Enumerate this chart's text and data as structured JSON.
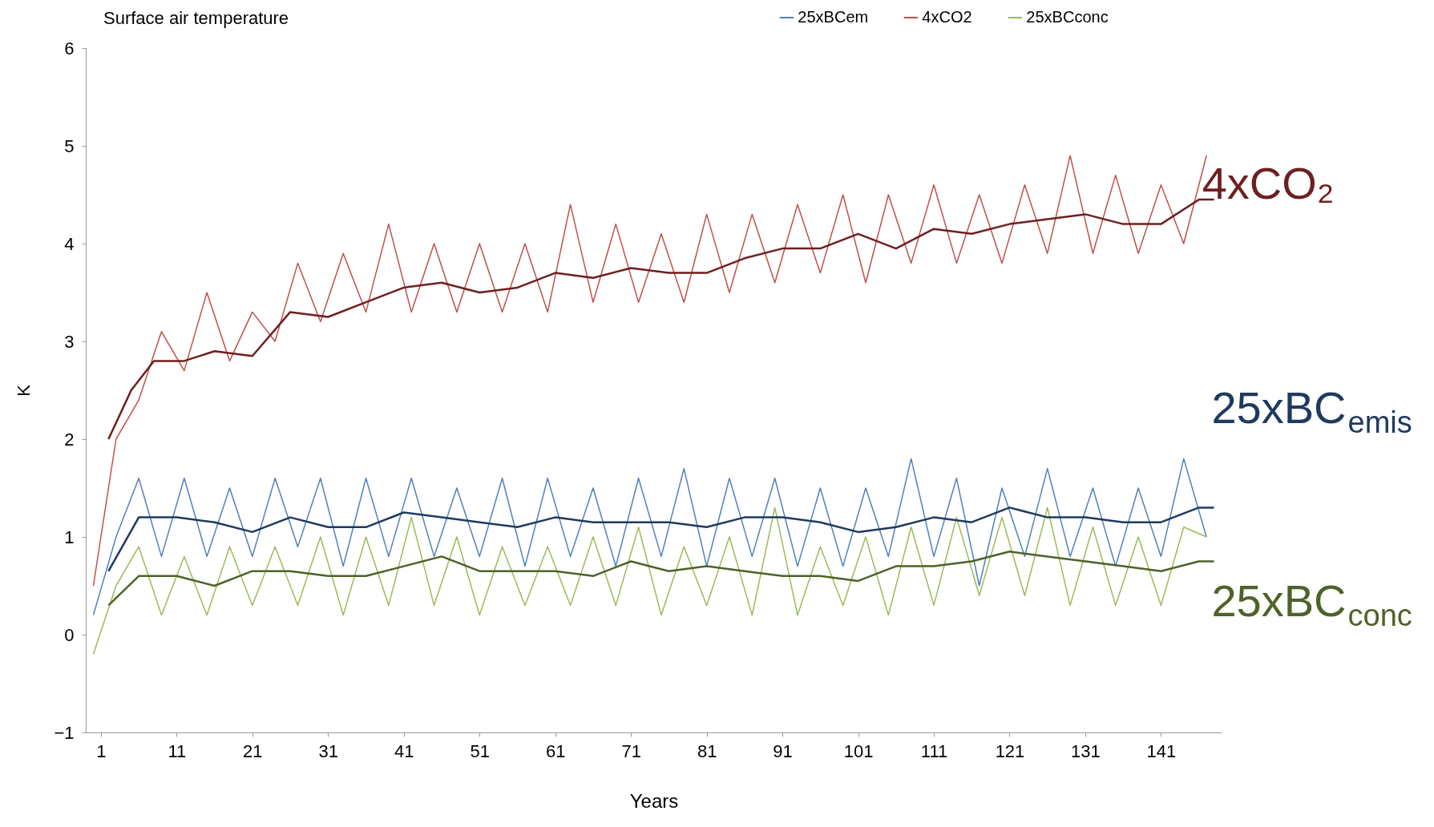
{
  "chart_data": {
    "type": "line",
    "title": "Surface air temperature",
    "xlabel": "Years",
    "ylabel": "K",
    "xlim": [
      -1,
      149
    ],
    "xticks": [
      1,
      11,
      21,
      31,
      41,
      51,
      61,
      71,
      81,
      91,
      101,
      111,
      121,
      131,
      141
    ],
    "ylim": [
      -1,
      6
    ],
    "yticks": [
      -1,
      0,
      1,
      2,
      3,
      4,
      5,
      6
    ],
    "grid": false,
    "legend": "top right",
    "series": [
      {
        "name": "25xBCem",
        "color": "#4f81bd",
        "x": [
          0,
          3,
          6,
          9,
          12,
          15,
          18,
          21,
          24,
          27,
          30,
          33,
          36,
          39,
          42,
          45,
          48,
          51,
          54,
          57,
          60,
          63,
          66,
          69,
          72,
          75,
          78,
          81,
          84,
          87,
          90,
          93,
          96,
          99,
          102,
          105,
          108,
          111,
          114,
          117,
          120,
          123,
          126,
          129,
          132,
          135,
          138,
          141,
          144,
          147
        ],
        "values": [
          0.2,
          1.0,
          1.6,
          0.8,
          1.6,
          0.8,
          1.5,
          0.8,
          1.6,
          0.9,
          1.6,
          0.7,
          1.6,
          0.8,
          1.6,
          0.8,
          1.5,
          0.8,
          1.6,
          0.7,
          1.6,
          0.8,
          1.5,
          0.7,
          1.6,
          0.8,
          1.7,
          0.7,
          1.6,
          0.8,
          1.6,
          0.7,
          1.5,
          0.7,
          1.5,
          0.8,
          1.8,
          0.8,
          1.6,
          0.5,
          1.5,
          0.8,
          1.7,
          0.8,
          1.5,
          0.7,
          1.5,
          0.8,
          1.8,
          1.0
        ]
      },
      {
        "name": "4xCO2",
        "color": "#c0504d",
        "x": [
          0,
          3,
          6,
          9,
          12,
          15,
          18,
          21,
          24,
          27,
          30,
          33,
          36,
          39,
          42,
          45,
          48,
          51,
          54,
          57,
          60,
          63,
          66,
          69,
          72,
          75,
          78,
          81,
          84,
          87,
          90,
          93,
          96,
          99,
          102,
          105,
          108,
          111,
          114,
          117,
          120,
          123,
          126,
          129,
          132,
          135,
          138,
          141,
          144,
          147
        ],
        "values": [
          0.5,
          2.0,
          2.4,
          3.1,
          2.7,
          3.5,
          2.8,
          3.3,
          3.0,
          3.8,
          3.2,
          3.9,
          3.3,
          4.2,
          3.3,
          4.0,
          3.3,
          4.0,
          3.3,
          4.0,
          3.3,
          4.4,
          3.4,
          4.2,
          3.4,
          4.1,
          3.4,
          4.3,
          3.5,
          4.3,
          3.6,
          4.4,
          3.7,
          4.5,
          3.6,
          4.5,
          3.8,
          4.6,
          3.8,
          4.5,
          3.8,
          4.6,
          3.9,
          4.9,
          3.9,
          4.7,
          3.9,
          4.6,
          4.0,
          4.9
        ]
      },
      {
        "name": "25xBCconc",
        "color": "#9bbb59",
        "x": [
          0,
          3,
          6,
          9,
          12,
          15,
          18,
          21,
          24,
          27,
          30,
          33,
          36,
          39,
          42,
          45,
          48,
          51,
          54,
          57,
          60,
          63,
          66,
          69,
          72,
          75,
          78,
          81,
          84,
          87,
          90,
          93,
          96,
          99,
          102,
          105,
          108,
          111,
          114,
          117,
          120,
          123,
          126,
          129,
          132,
          135,
          138,
          141,
          144,
          147
        ],
        "values": [
          -0.2,
          0.5,
          0.9,
          0.2,
          0.8,
          0.2,
          0.9,
          0.3,
          0.9,
          0.3,
          1.0,
          0.2,
          1.0,
          0.3,
          1.2,
          0.3,
          1.0,
          0.2,
          0.9,
          0.3,
          0.9,
          0.3,
          1.0,
          0.3,
          1.1,
          0.2,
          0.9,
          0.3,
          1.0,
          0.2,
          1.3,
          0.2,
          0.9,
          0.3,
          1.0,
          0.2,
          1.1,
          0.3,
          1.2,
          0.4,
          1.2,
          0.4,
          1.3,
          0.3,
          1.1,
          0.3,
          1.0,
          0.3,
          1.1,
          1.0
        ]
      },
      {
        "name": "25xBC$_{emis}$",
        "color": "#1f3a60",
        "x": [
          2,
          6,
          11,
          16,
          21,
          26,
          31,
          36,
          41,
          46,
          51,
          56,
          61,
          66,
          71,
          76,
          81,
          86,
          91,
          96,
          101,
          106,
          111,
          116,
          121,
          126,
          131,
          136,
          141,
          146,
          148
        ],
        "values": [
          0.65,
          1.2,
          1.2,
          1.15,
          1.05,
          1.2,
          1.1,
          1.1,
          1.25,
          1.2,
          1.15,
          1.1,
          1.2,
          1.15,
          1.15,
          1.15,
          1.1,
          1.2,
          1.2,
          1.15,
          1.05,
          1.1,
          1.2,
          1.15,
          1.3,
          1.2,
          1.2,
          1.15,
          1.15,
          1.3,
          1.3
        ]
      },
      {
        "name": "4xCO₂",
        "color": "#6e1f1f",
        "x": [
          2,
          5,
          8,
          12,
          16,
          21,
          26,
          31,
          36,
          41,
          46,
          51,
          56,
          61,
          66,
          71,
          76,
          81,
          86,
          91,
          96,
          101,
          106,
          111,
          116,
          121,
          126,
          131,
          136,
          141,
          146,
          148
        ],
        "values": [
          2.0,
          2.5,
          2.8,
          2.8,
          2.9,
          2.85,
          3.3,
          3.25,
          3.4,
          3.55,
          3.6,
          3.5,
          3.55,
          3.7,
          3.65,
          3.75,
          3.7,
          3.7,
          3.85,
          3.95,
          3.95,
          4.1,
          3.95,
          4.15,
          4.1,
          4.2,
          4.25,
          4.3,
          4.2,
          4.2,
          4.45,
          4.45
        ]
      },
      {
        "name": "25xBC$_{conc}$",
        "color": "#4f6228",
        "x": [
          2,
          6,
          11,
          16,
          21,
          26,
          31,
          36,
          41,
          46,
          51,
          56,
          61,
          66,
          71,
          76,
          81,
          86,
          91,
          96,
          101,
          106,
          111,
          116,
          121,
          126,
          131,
          136,
          141,
          146,
          148
        ],
        "values": [
          0.3,
          0.6,
          0.6,
          0.5,
          0.65,
          0.65,
          0.6,
          0.6,
          0.7,
          0.8,
          0.65,
          0.65,
          0.65,
          0.6,
          0.75,
          0.65,
          0.7,
          0.65,
          0.6,
          0.6,
          0.55,
          0.7,
          0.7,
          0.75,
          0.85,
          0.8,
          0.75,
          0.7,
          0.65,
          0.75,
          0.75
        ]
      }
    ]
  }
}
